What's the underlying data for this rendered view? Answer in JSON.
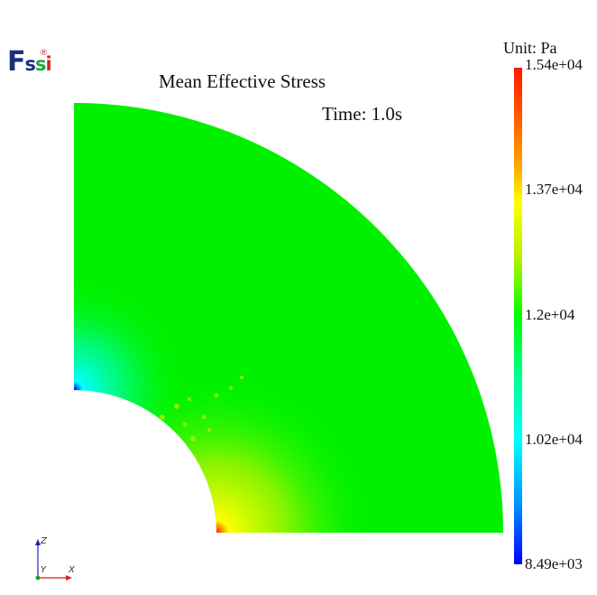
{
  "logo": {
    "f": "F",
    "s1": "s",
    "s2": "s",
    "i": "i",
    "mark": "®"
  },
  "title": "Mean Effective Stress",
  "time": "Time: 1.0s",
  "unit": "Unit:  Pa",
  "colorbar": {
    "ticks": [
      "1.54e+04",
      "1.37e+04",
      "1.2e+04",
      "1.02e+04",
      "8.49e+03"
    ],
    "min": 8490,
    "max": 15400,
    "colors": {
      "max": "#ff1a00",
      "high": "#ffff00",
      "mid": "#00ff00",
      "low": "#00ffff",
      "min": "#0000ff"
    }
  },
  "axes": {
    "z": "Z",
    "y": "Y",
    "x": "X"
  }
}
